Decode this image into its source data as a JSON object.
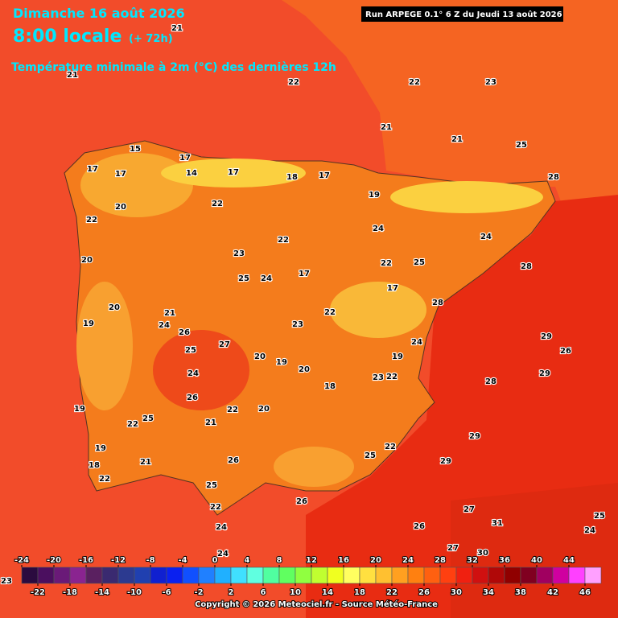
{
  "header": {
    "date": "Dimanche 16 août 2026",
    "time": "8:00 locale",
    "offset": "(+ 72h)",
    "subtitle": "Température minimale à 2m (°C) des dernières 12h",
    "run": "Run ARPEGE 0.1° 6 Z du Jeudi 13 août 2026"
  },
  "map": {
    "labels": [
      21,
      21,
      22,
      21,
      21,
      22,
      23,
      25,
      28,
      17,
      17,
      15,
      17,
      14,
      17,
      18,
      17,
      19,
      22,
      20,
      20,
      22,
      22,
      23,
      25,
      24,
      17,
      22,
      24,
      25,
      24,
      28,
      28,
      22,
      17,
      23,
      21,
      24,
      19,
      20,
      26,
      25,
      27,
      20,
      19,
      20,
      19,
      24,
      29,
      26,
      29,
      28,
      23,
      22,
      18,
      20,
      22,
      21,
      26,
      24,
      25,
      22,
      19,
      19,
      18,
      22,
      21,
      26,
      25,
      22,
      26,
      25,
      22,
      29,
      29,
      27,
      26,
      27,
      31,
      30,
      24,
      24,
      24,
      25,
      23
    ]
  },
  "legend": {
    "top_ticks": [
      -24,
      -20,
      -16,
      -12,
      -8,
      -4,
      0,
      4,
      8,
      12,
      16,
      20,
      24,
      28,
      32,
      36,
      40,
      44
    ],
    "bottom_ticks": [
      -22,
      -18,
      -14,
      -10,
      -6,
      -2,
      2,
      6,
      10,
      14,
      18,
      22,
      26,
      30,
      34,
      38,
      42,
      46
    ],
    "colors": [
      "#2b0b3f",
      "#4b0f5f",
      "#6a1a78",
      "#8a2490",
      "#5a2060",
      "#3a2a70",
      "#2c3a90",
      "#2040b0",
      "#1020d0",
      "#0a20f0",
      "#1050ff",
      "#2080ff",
      "#20b0ff",
      "#40e0ff",
      "#60ffe0",
      "#50ffa0",
      "#60ff60",
      "#90ff40",
      "#c0ff30",
      "#f0ff20",
      "#ffff60",
      "#ffe040",
      "#ffc030",
      "#ffa020",
      "#ff8010",
      "#ff6010",
      "#ff4010",
      "#f02010",
      "#d01010",
      "#b00808",
      "#900000",
      "#800020",
      "#a00060",
      "#d000a0",
      "#ff40ff",
      "#ffa0ff"
    ]
  },
  "footer": "Copyright © 2026 Meteociel.fr - Source Météo-France"
}
